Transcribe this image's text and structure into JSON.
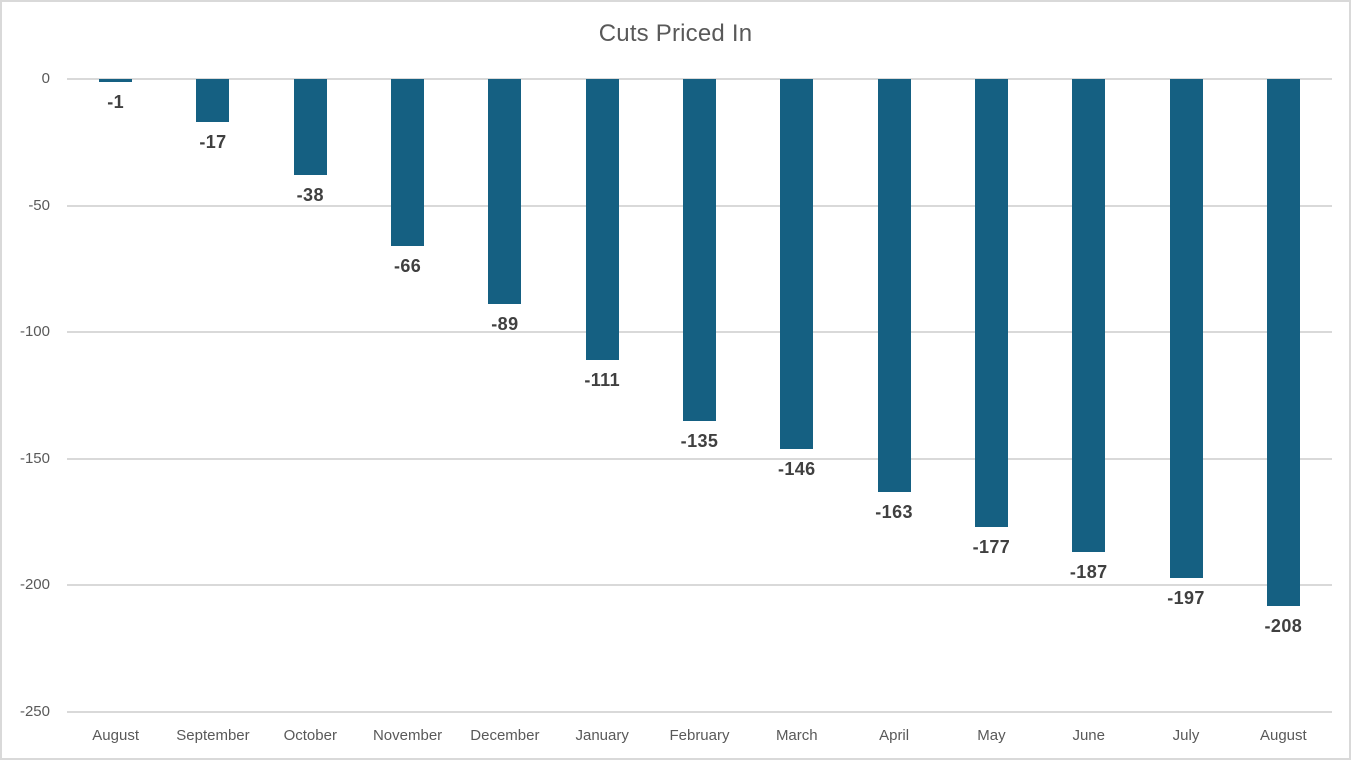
{
  "colors": {
    "bar": "#156082",
    "gridline": "#d9d9d9",
    "border": "#d9d9d9",
    "background": "#ffffff",
    "title_text": "#595959",
    "axis_text": "#595959",
    "data_label_text": "#404040"
  },
  "chart_data": {
    "type": "bar",
    "title": "Cuts Priced In",
    "categories": [
      "August",
      "September",
      "October",
      "November",
      "December",
      "January",
      "February",
      "March",
      "April",
      "May",
      "June",
      "July",
      "August"
    ],
    "values": [
      -1,
      -17,
      -38,
      -66,
      -89,
      -111,
      -135,
      -146,
      -163,
      -177,
      -187,
      -197,
      -208
    ],
    "data_labels": [
      "-1",
      "-17",
      "-38",
      "-66",
      "-89",
      "-111",
      "-135",
      "-146",
      "-163",
      "-177",
      "-187",
      "-197",
      "-208"
    ],
    "xlabel": "",
    "ylabel": "",
    "ylim": [
      -250,
      0
    ],
    "y_ticks": [
      0,
      -50,
      -100,
      -150,
      -200,
      -250
    ],
    "grid": true,
    "legend": "none",
    "data_label_position": "outside-end"
  }
}
